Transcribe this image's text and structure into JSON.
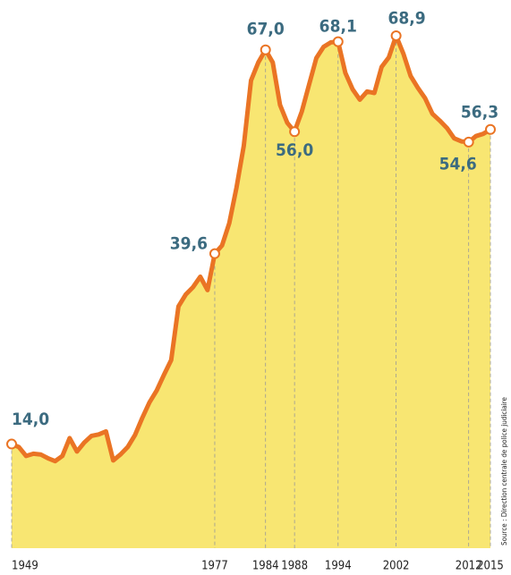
{
  "chart_data": {
    "type": "area",
    "x": [
      1949,
      1950,
      1951,
      1952,
      1953,
      1954,
      1955,
      1956,
      1957,
      1958,
      1959,
      1960,
      1961,
      1962,
      1963,
      1964,
      1965,
      1966,
      1967,
      1968,
      1969,
      1970,
      1971,
      1972,
      1973,
      1974,
      1975,
      1976,
      1977,
      1978,
      1979,
      1980,
      1981,
      1982,
      1983,
      1984,
      1985,
      1986,
      1987,
      1988,
      1989,
      1990,
      1991,
      1992,
      1993,
      1994,
      1995,
      1996,
      1997,
      1998,
      1999,
      2000,
      2001,
      2002,
      2003,
      2004,
      2005,
      2006,
      2007,
      2008,
      2009,
      2010,
      2011,
      2012,
      2013,
      2014,
      2015
    ],
    "values": [
      14.0,
      13.6,
      12.4,
      12.7,
      12.6,
      12.1,
      11.7,
      12.4,
      14.8,
      13.0,
      14.2,
      15.1,
      15.3,
      15.7,
      11.8,
      12.6,
      13.6,
      15.2,
      17.5,
      19.6,
      21.2,
      23.3,
      25.3,
      32.5,
      34.1,
      35.1,
      36.5,
      34.7,
      39.6,
      40.7,
      43.7,
      48.5,
      54.1,
      62.9,
      65.3,
      67.0,
      65.3,
      59.6,
      57.2,
      56.0,
      58.7,
      62.3,
      65.9,
      67.4,
      68.0,
      68.1,
      63.9,
      61.7,
      60.3,
      61.4,
      61.2,
      64.7,
      66.0,
      68.9,
      66.5,
      63.5,
      61.9,
      60.5,
      58.4,
      57.5,
      56.5,
      55.1,
      54.7,
      54.6,
      55.4,
      55.7,
      56.3
    ],
    "value_labels": [
      "14,0",
      null,
      null,
      null,
      null,
      null,
      null,
      null,
      null,
      null,
      null,
      null,
      null,
      null,
      null,
      null,
      null,
      null,
      null,
      null,
      null,
      null,
      null,
      null,
      null,
      null,
      null,
      null,
      "39,6",
      null,
      null,
      null,
      null,
      null,
      null,
      "67,0",
      null,
      null,
      null,
      "56,0",
      null,
      null,
      null,
      null,
      null,
      "68,1",
      null,
      null,
      null,
      null,
      null,
      null,
      null,
      "68,9",
      null,
      null,
      null,
      null,
      null,
      null,
      null,
      null,
      null,
      "54,6",
      null,
      null,
      "56,3"
    ],
    "xlim": [
      1949,
      2015
    ],
    "xticks": [
      1949,
      1977,
      1984,
      1988,
      1994,
      2002,
      2012,
      2015
    ],
    "ylim": [
      0,
      71.3
    ],
    "line_color": "#ea7424",
    "fill_color": "#f8e672",
    "source": "Source : Direction centrale de police judiciaire"
  }
}
